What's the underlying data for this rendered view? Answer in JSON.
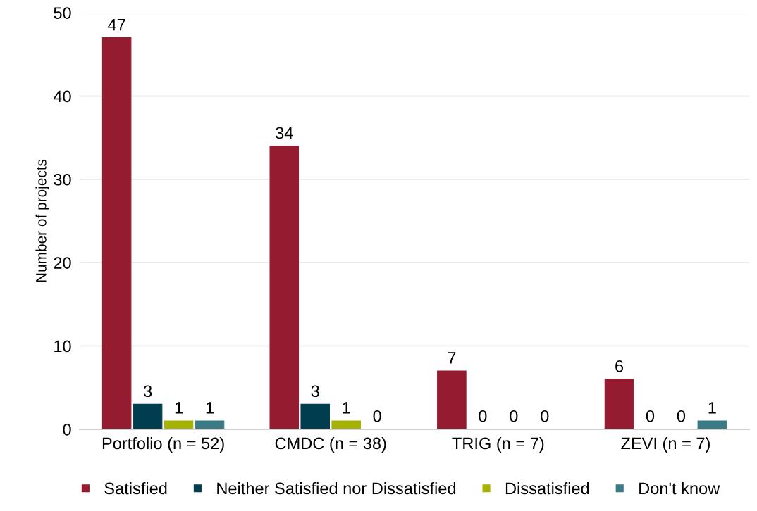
{
  "chart_data": {
    "type": "bar",
    "ylabel": "Number of projects",
    "categories": [
      "Portfolio (n = 52)",
      "CMDC (n = 38)",
      "TRIG (n = 7)",
      "ZEVI (n = 7)"
    ],
    "series": [
      {
        "name": "Satisfied",
        "color": "#951b31",
        "values": [
          47,
          34,
          7,
          6
        ]
      },
      {
        "name": "Neither Satisfied nor Dissatisfied",
        "color": "#003e4f",
        "values": [
          3,
          3,
          0,
          0
        ]
      },
      {
        "name": "Dissatisfied",
        "color": "#a5b300",
        "values": [
          1,
          1,
          0,
          0
        ]
      },
      {
        "name": "Don't know",
        "color": "#3b7b86",
        "values": [
          1,
          0,
          0,
          1
        ]
      }
    ],
    "ylim": [
      0,
      50
    ],
    "yticks": [
      0,
      10,
      20,
      30,
      40,
      50
    ],
    "grid": "y",
    "legend": "bottom",
    "data_labels": true
  }
}
